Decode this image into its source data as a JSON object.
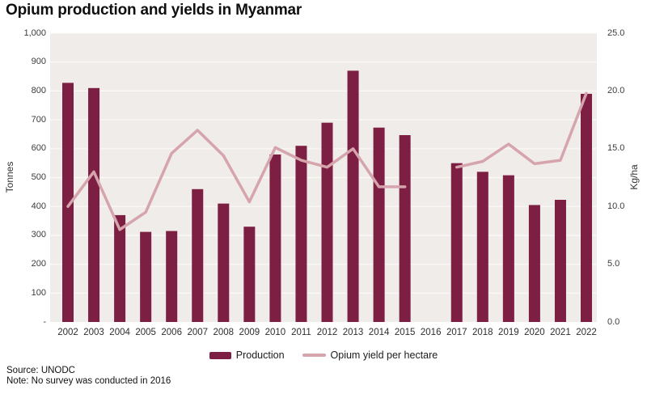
{
  "title": "Opium production and yields in Myanmar",
  "source": "Source: UNODC",
  "note": "Note: No survey was conducted in 2016",
  "left_axis": {
    "label": "Tonnes",
    "ticks": [
      "1,000",
      "900",
      "800",
      "700",
      "600",
      "500",
      "400",
      "300",
      "200",
      "100",
      "-"
    ],
    "tick_values": [
      1000,
      900,
      800,
      700,
      600,
      500,
      400,
      300,
      200,
      100,
      0
    ]
  },
  "right_axis": {
    "label": "Kg/ha",
    "ticks": [
      "25.0",
      "20.0",
      "15.0",
      "10.0",
      "5.0",
      "0.0"
    ],
    "tick_values": [
      25,
      20,
      15,
      10,
      5,
      0
    ]
  },
  "legend": {
    "production_label": "Production",
    "yield_label": "Opium yield per hectare"
  },
  "colors": {
    "bar": "#7c1f42",
    "line": "#d6a4ac",
    "plot_bg": "#f0ece9",
    "gridline": "#fbfaf8"
  },
  "chart_data": {
    "type": "bar",
    "title": "Opium production and yields in Myanmar",
    "categories": [
      "2002",
      "2003",
      "2004",
      "2005",
      "2006",
      "2007",
      "2008",
      "2009",
      "2010",
      "2011",
      "2012",
      "2013",
      "2014",
      "2015",
      "2016",
      "2017",
      "2018",
      "2019",
      "2020",
      "2021",
      "2022"
    ],
    "series": [
      {
        "name": "Production",
        "type": "bar",
        "axis": "left",
        "unit": "tonnes",
        "values": [
          828,
          810,
          370,
          312,
          315,
          460,
          410,
          330,
          580,
          610,
          690,
          870,
          673,
          647,
          null,
          550,
          520,
          508,
          405,
          423,
          790
        ]
      },
      {
        "name": "Opium yield per hectare",
        "type": "line",
        "axis": "right",
        "unit": "kg/ha",
        "values": [
          10.0,
          13.0,
          8.0,
          9.5,
          14.6,
          16.6,
          14.4,
          10.4,
          15.1,
          14.0,
          13.4,
          15.0,
          11.7,
          11.7,
          null,
          13.4,
          13.9,
          15.4,
          13.7,
          14.0,
          19.8
        ]
      }
    ],
    "left_ylabel": "Tonnes",
    "right_ylabel": "Kg/ha",
    "left_ylim": [
      0,
      1000
    ],
    "right_ylim": [
      0,
      25
    ],
    "grid": true,
    "legend_position": "bottom",
    "note_no_data_year": "2016"
  }
}
